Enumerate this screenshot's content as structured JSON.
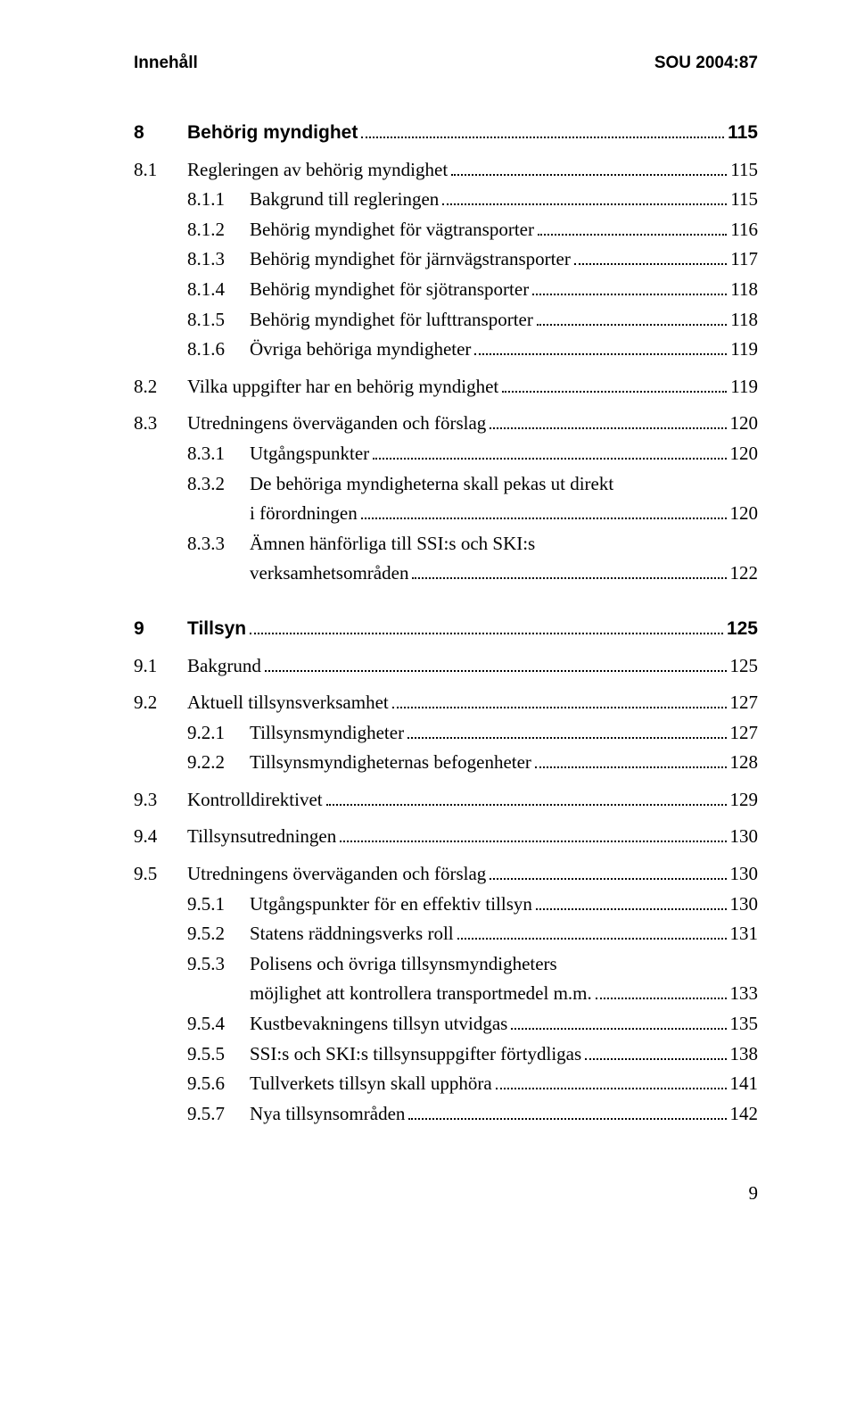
{
  "header": {
    "left": "Innehåll",
    "right": "SOU 2004:87"
  },
  "entries": [
    {
      "kind": "line",
      "bold": true,
      "indent": 0,
      "num": "8",
      "text": "Behörig myndighet",
      "page": "115"
    },
    {
      "kind": "gap",
      "size": "small"
    },
    {
      "kind": "line",
      "bold": false,
      "indent": 1,
      "num": "8.1",
      "text": "Regleringen av behörig myndighet",
      "page": "115"
    },
    {
      "kind": "line",
      "bold": false,
      "indent": 2,
      "num": "8.1.1",
      "text": "Bakgrund till regleringen",
      "page": "115"
    },
    {
      "kind": "line",
      "bold": false,
      "indent": 2,
      "num": "8.1.2",
      "text": "Behörig myndighet för vägtransporter",
      "page": "116"
    },
    {
      "kind": "line",
      "bold": false,
      "indent": 2,
      "num": "8.1.3",
      "text": "Behörig myndighet för järnvägstransporter",
      "page": "117"
    },
    {
      "kind": "line",
      "bold": false,
      "indent": 2,
      "num": "8.1.4",
      "text": "Behörig myndighet för sjötransporter",
      "page": "118"
    },
    {
      "kind": "line",
      "bold": false,
      "indent": 2,
      "num": "8.1.5",
      "text": "Behörig myndighet för lufttransporter",
      "page": "118"
    },
    {
      "kind": "line",
      "bold": false,
      "indent": 2,
      "num": "8.1.6",
      "text": "Övriga behöriga myndigheter",
      "page": "119"
    },
    {
      "kind": "gap",
      "size": "small"
    },
    {
      "kind": "line",
      "bold": false,
      "indent": 1,
      "num": "8.2",
      "text": "Vilka uppgifter har en behörig myndighet",
      "page": "119"
    },
    {
      "kind": "gap",
      "size": "small"
    },
    {
      "kind": "line",
      "bold": false,
      "indent": 1,
      "num": "8.3",
      "text": "Utredningens överväganden och förslag",
      "page": "120"
    },
    {
      "kind": "line",
      "bold": false,
      "indent": 2,
      "num": "8.3.1",
      "text": "Utgångspunkter",
      "page": "120"
    },
    {
      "kind": "multiline",
      "bold": false,
      "indent": 2,
      "num": "8.3.2",
      "lines": [
        "De behöriga myndigheterna skall pekas ut direkt",
        "i förordningen"
      ],
      "page": "120"
    },
    {
      "kind": "multiline",
      "bold": false,
      "indent": 2,
      "num": "8.3.3",
      "lines": [
        "Ämnen hänförliga till SSI:s och SKI:s",
        "verksamhetsområden"
      ],
      "page": "122"
    },
    {
      "kind": "gap",
      "size": "med"
    },
    {
      "kind": "line",
      "bold": true,
      "indent": 0,
      "num": "9",
      "text": "Tillsyn",
      "page": "125"
    },
    {
      "kind": "gap",
      "size": "small"
    },
    {
      "kind": "line",
      "bold": false,
      "indent": 1,
      "num": "9.1",
      "text": "Bakgrund",
      "page": "125"
    },
    {
      "kind": "gap",
      "size": "small"
    },
    {
      "kind": "line",
      "bold": false,
      "indent": 1,
      "num": "9.2",
      "text": "Aktuell tillsynsverksamhet",
      "page": "127"
    },
    {
      "kind": "line",
      "bold": false,
      "indent": 2,
      "num": "9.2.1",
      "text": "Tillsynsmyndigheter",
      "page": "127"
    },
    {
      "kind": "line",
      "bold": false,
      "indent": 2,
      "num": "9.2.2",
      "text": "Tillsynsmyndigheternas befogenheter",
      "page": "128"
    },
    {
      "kind": "gap",
      "size": "small"
    },
    {
      "kind": "line",
      "bold": false,
      "indent": 1,
      "num": "9.3",
      "text": "Kontrolldirektivet",
      "page": "129"
    },
    {
      "kind": "gap",
      "size": "small"
    },
    {
      "kind": "line",
      "bold": false,
      "indent": 1,
      "num": "9.4",
      "text": "Tillsynsutredningen",
      "page": "130"
    },
    {
      "kind": "gap",
      "size": "small"
    },
    {
      "kind": "line",
      "bold": false,
      "indent": 1,
      "num": "9.5",
      "text": "Utredningens överväganden och förslag",
      "page": "130"
    },
    {
      "kind": "line",
      "bold": false,
      "indent": 2,
      "num": "9.5.1",
      "text": "Utgångspunkter för en effektiv tillsyn",
      "page": "130"
    },
    {
      "kind": "line",
      "bold": false,
      "indent": 2,
      "num": "9.5.2",
      "text": "Statens räddningsverks roll",
      "page": "131"
    },
    {
      "kind": "multiline",
      "bold": false,
      "indent": 2,
      "num": "9.5.3",
      "lines": [
        "Polisens och övriga tillsynsmyndigheters",
        "möjlighet att kontrollera transportmedel m.m."
      ],
      "page": "133"
    },
    {
      "kind": "line",
      "bold": false,
      "indent": 2,
      "num": "9.5.4",
      "text": "Kustbevakningens tillsyn utvidgas",
      "page": "135"
    },
    {
      "kind": "line",
      "bold": false,
      "indent": 2,
      "num": "9.5.5",
      "text": "SSI:s och SKI:s tillsynsuppgifter förtydligas",
      "page": "138"
    },
    {
      "kind": "line",
      "bold": false,
      "indent": 2,
      "num": "9.5.6",
      "text": "Tullverkets tillsyn skall upphöra",
      "page": "141"
    },
    {
      "kind": "line",
      "bold": false,
      "indent": 2,
      "num": "9.5.7",
      "text": "Nya tillsynsområden",
      "page": "142"
    }
  ],
  "footer": {
    "page_number": "9"
  }
}
